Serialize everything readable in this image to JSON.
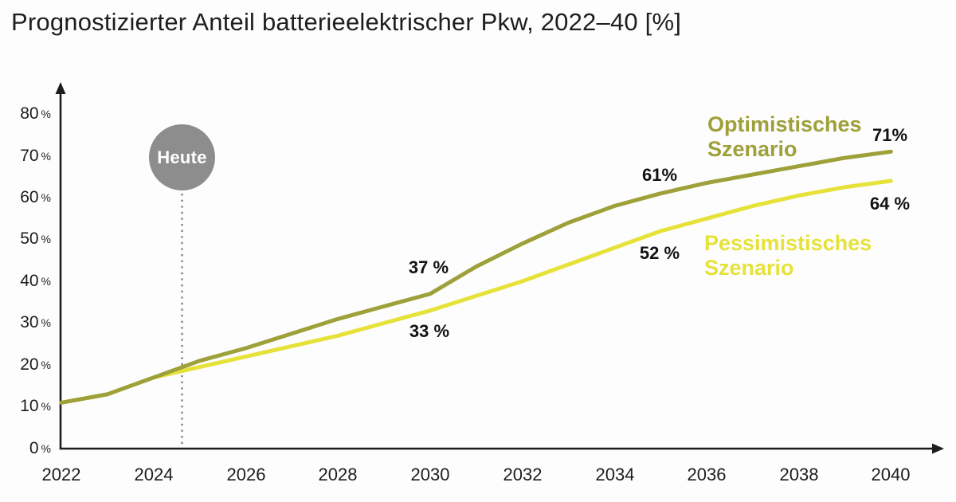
{
  "title": "Prognostizierter Anteil batterieelektrischer Pkw, 2022–40 [%]",
  "units": {
    "percent": "%"
  },
  "today_marker": {
    "label": "Heute",
    "approx_year": 2024.6,
    "circle_color": "#8d8d8d"
  },
  "colors": {
    "optimistic": "#9ea03a",
    "pessimistic": "#e6e23a",
    "axis": "#1d1d1d",
    "today_circle": "#8d8d8d",
    "background": "#fdfdfd"
  },
  "chart_data": {
    "type": "line",
    "title": "Prognostizierter Anteil batterieelektrischer Pkw, 2022–40 [%]",
    "xlabel": "",
    "ylabel": "",
    "xlim": [
      2022,
      2040
    ],
    "ylim": [
      0,
      80
    ],
    "grid": false,
    "legend_position": "inline-labels",
    "years": [
      2022,
      2023,
      2024,
      2025,
      2026,
      2027,
      2028,
      2029,
      2030,
      2031,
      2032,
      2033,
      2034,
      2035,
      2036,
      2037,
      2038,
      2039,
      2040
    ],
    "xticks": [
      "2022",
      "2024",
      "2026",
      "2028",
      "2030",
      "2032",
      "2034",
      "2036",
      "2038",
      "2040"
    ],
    "yticks": [
      "80",
      "70",
      "60",
      "50",
      "40",
      "30",
      "20",
      "10",
      "0"
    ],
    "series": [
      {
        "name": "Optimistisches Szenario",
        "name_lines": [
          "Optimistisches",
          "Szenario"
        ],
        "color": "#9ea03a",
        "values": [
          11,
          13,
          17,
          21,
          24,
          27.5,
          31,
          34,
          37,
          43.5,
          49,
          54,
          58,
          61,
          63.5,
          65.5,
          67.5,
          69.5,
          71
        ]
      },
      {
        "name": "Pessimistisches Szenario",
        "name_lines": [
          "Pessimistisches",
          "Szenario"
        ],
        "color": "#e6e23a",
        "values": [
          11,
          13,
          17,
          19.5,
          22,
          24.5,
          27,
          30,
          33,
          36.5,
          40,
          44,
          48,
          52,
          55,
          58,
          60.5,
          62.5,
          64
        ]
      }
    ],
    "annotations": [
      {
        "series": "Optimistisches Szenario",
        "year": 2030,
        "value": 37,
        "label": "37 %"
      },
      {
        "series": "Pessimistisches Szenario",
        "year": 2030,
        "value": 33,
        "label": "33 %"
      },
      {
        "series": "Optimistisches Szenario",
        "year": 2035,
        "value": 61,
        "label": "61%"
      },
      {
        "series": "Pessimistisches Szenario",
        "year": 2035,
        "value": 52,
        "label": "52 %"
      },
      {
        "series": "Optimistisches Szenario",
        "year": 2040,
        "value": 71,
        "label": "71%"
      },
      {
        "series": "Pessimistisches Szenario",
        "year": 2040,
        "value": 64,
        "label": "64 %"
      }
    ]
  }
}
